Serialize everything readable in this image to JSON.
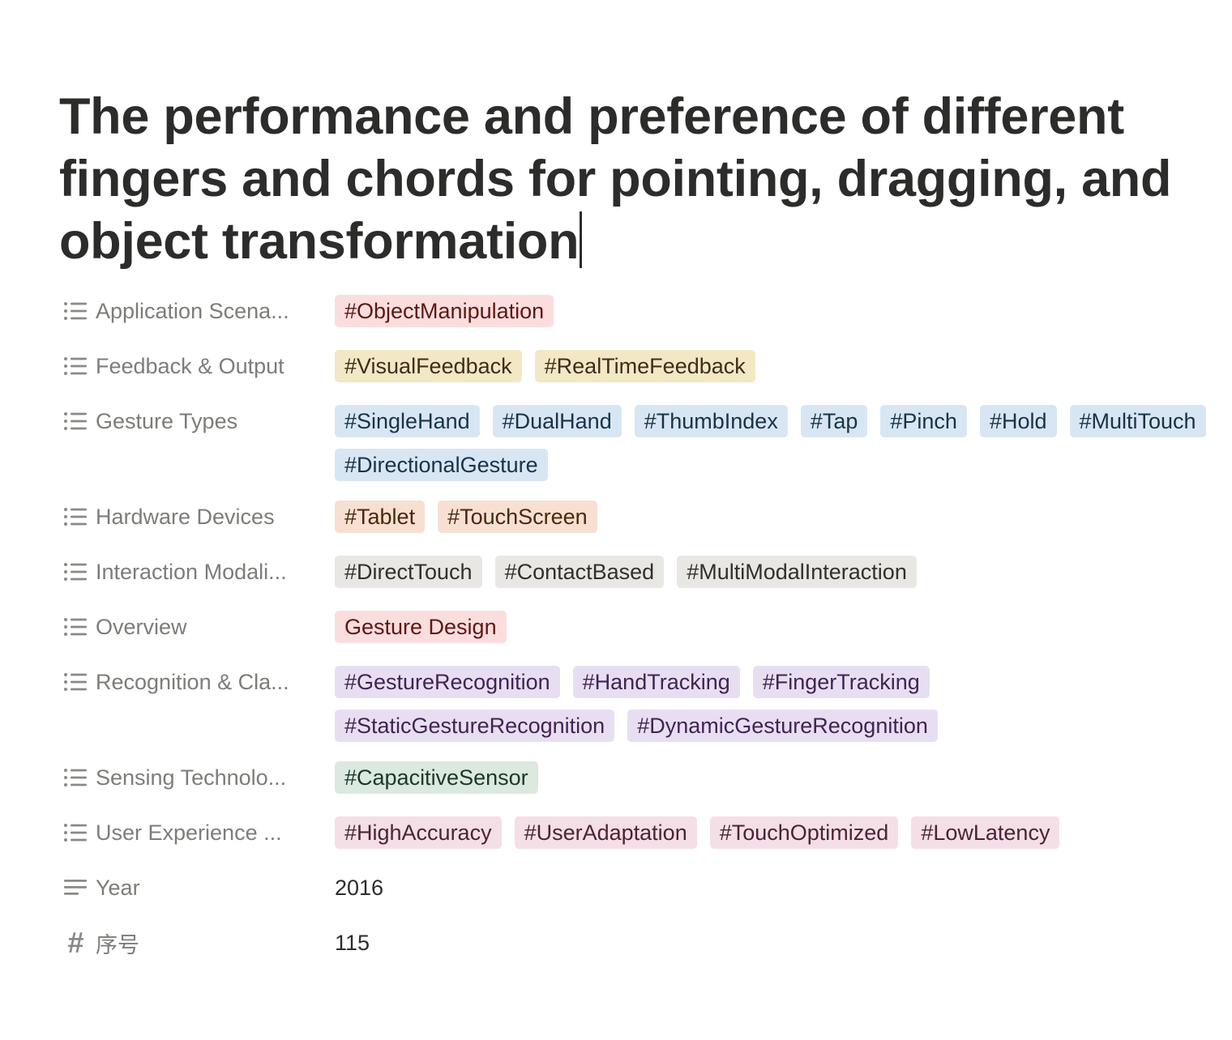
{
  "page": {
    "title": "The performance and preference of different fingers and chords for pointing, dragging, and object transformation"
  },
  "properties": [
    {
      "name": "Application Scena...",
      "icon": "list-icon",
      "tags": [
        {
          "label": "#ObjectManipulation",
          "color": "red"
        }
      ]
    },
    {
      "name": "Feedback & Output",
      "icon": "list-icon",
      "tags": [
        {
          "label": "#VisualFeedback",
          "color": "yellow"
        },
        {
          "label": "#RealTimeFeedback",
          "color": "yellow"
        }
      ]
    },
    {
      "name": "Gesture Types",
      "icon": "list-icon",
      "tags": [
        {
          "label": "#SingleHand",
          "color": "blue"
        },
        {
          "label": "#DualHand",
          "color": "blue"
        },
        {
          "label": "#ThumbIndex",
          "color": "blue"
        },
        {
          "label": "#Tap",
          "color": "blue"
        },
        {
          "label": "#Pinch",
          "color": "blue"
        },
        {
          "label": "#Hold",
          "color": "blue"
        },
        {
          "label": "#MultiTouch",
          "color": "blue"
        },
        {
          "label": "#DirectionalGesture",
          "color": "blue"
        }
      ]
    },
    {
      "name": "Hardware Devices",
      "icon": "list-icon",
      "tags": [
        {
          "label": "#Tablet",
          "color": "orange"
        },
        {
          "label": "#TouchScreen",
          "color": "orange"
        }
      ]
    },
    {
      "name": "Interaction Modali...",
      "icon": "list-icon",
      "tags": [
        {
          "label": "#DirectTouch",
          "color": "gray"
        },
        {
          "label": "#ContactBased",
          "color": "gray"
        },
        {
          "label": "#MultiModalInteraction",
          "color": "gray"
        }
      ]
    },
    {
      "name": "Overview",
      "icon": "list-icon",
      "tags": [
        {
          "label": "Gesture Design",
          "color": "red"
        }
      ]
    },
    {
      "name": "Recognition & Cla...",
      "icon": "list-icon",
      "tags": [
        {
          "label": "#GestureRecognition",
          "color": "purple"
        },
        {
          "label": "#HandTracking",
          "color": "purple"
        },
        {
          "label": "#FingerTracking",
          "color": "purple"
        },
        {
          "label": "#StaticGestureRecognition",
          "color": "purple"
        },
        {
          "label": "#DynamicGestureRecognition",
          "color": "purple"
        }
      ]
    },
    {
      "name": "Sensing Technolo...",
      "icon": "list-icon",
      "tags": [
        {
          "label": "#CapacitiveSensor",
          "color": "green"
        }
      ]
    },
    {
      "name": "User Experience ...",
      "icon": "list-icon",
      "tags": [
        {
          "label": "#HighAccuracy",
          "color": "pink"
        },
        {
          "label": "#UserAdaptation",
          "color": "pink"
        },
        {
          "label": "#TouchOptimized",
          "color": "pink"
        },
        {
          "label": "#LowLatency",
          "color": "pink"
        }
      ]
    },
    {
      "name": "Year",
      "icon": "text-lines-icon",
      "value": "2016"
    },
    {
      "name": "序号",
      "icon": "number-hash-icon",
      "icon_glyph": "#",
      "value": "115"
    }
  ]
}
